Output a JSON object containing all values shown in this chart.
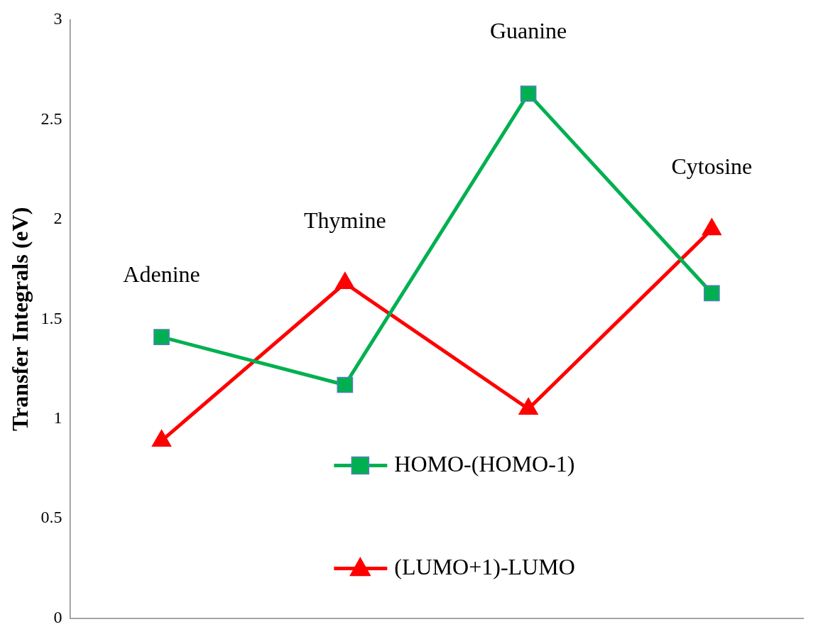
{
  "chart_data": {
    "type": "line",
    "ylabel": "Transfer Integrals (eV)",
    "categories": [
      "Adenine",
      "Thymine",
      "Guanine",
      "Cytosine"
    ],
    "series": [
      {
        "name": "HOMO-(HOMO-1)",
        "color": "#00b050",
        "marker": "square",
        "values": [
          1.41,
          1.17,
          2.63,
          1.63
        ]
      },
      {
        "name": "(LUMO+1)-LUMO",
        "color": "#ff0000",
        "marker": "triangle",
        "values": [
          0.89,
          1.68,
          1.05,
          1.95
        ]
      }
    ],
    "ylim": [
      0,
      3
    ],
    "yticks": [
      0,
      0.5,
      1,
      1.5,
      2,
      2.5,
      3
    ],
    "grid": false,
    "legend": "bottom",
    "line_style": "solid"
  }
}
